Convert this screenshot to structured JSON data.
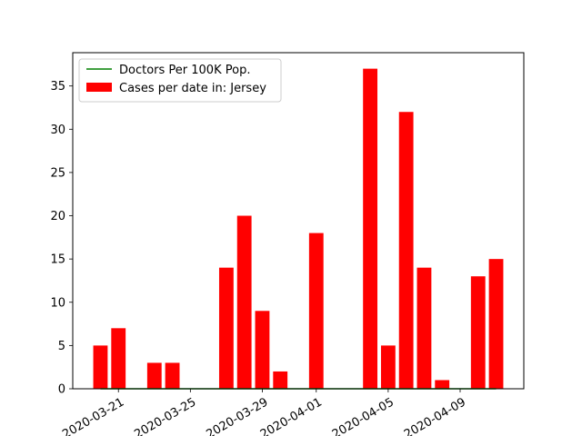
{
  "chart_data": {
    "type": "bar",
    "dates": [
      "2020-03-20",
      "2020-03-21",
      "2020-03-22",
      "2020-03-23",
      "2020-03-24",
      "2020-03-25",
      "2020-03-26",
      "2020-03-27",
      "2020-03-28",
      "2020-03-29",
      "2020-03-30",
      "2020-03-31",
      "2020-04-01",
      "2020-04-02",
      "2020-04-03",
      "2020-04-04",
      "2020-04-05",
      "2020-04-06",
      "2020-04-07",
      "2020-04-08",
      "2020-04-09",
      "2020-04-10",
      "2020-04-11"
    ],
    "series": [
      {
        "name": "Cases per date in: Jersey",
        "type": "bar",
        "color": "#ff0000",
        "values": [
          5,
          7,
          0,
          3,
          3,
          0,
          0,
          14,
          20,
          9,
          2,
          0,
          18,
          0,
          0,
          37,
          5,
          32,
          14,
          1,
          0,
          13,
          15
        ]
      },
      {
        "name": "Doctors Per 100K Pop.",
        "type": "line",
        "color": "#008000",
        "values": [
          0,
          0,
          0,
          0,
          0,
          0,
          0,
          0,
          0,
          0,
          0,
          0,
          0,
          0,
          0,
          0,
          0,
          0,
          0,
          0,
          0,
          0,
          0
        ]
      }
    ],
    "x_tick_labels": [
      "2020-03-21",
      "2020-03-25",
      "2020-03-29",
      "2020-04-01",
      "2020-04-05",
      "2020-04-09"
    ],
    "y_ticks": [
      0,
      5,
      10,
      15,
      20,
      25,
      30,
      35
    ],
    "ylim": [
      0,
      38.85
    ],
    "legend_position": "upper-left",
    "title": "",
    "xlabel": "",
    "ylabel": ""
  }
}
